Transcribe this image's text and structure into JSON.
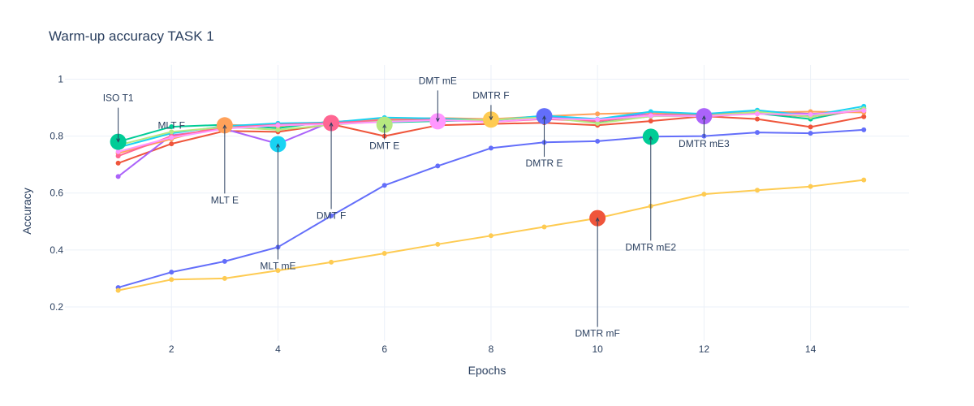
{
  "chart_data": {
    "type": "line",
    "title": "Warm-up accuracy TASK 1",
    "xlabel": "Epochs",
    "ylabel": "Accuracy",
    "xlim": [
      0.0,
      15.85
    ],
    "ylim": [
      0.08,
      1.05
    ],
    "x_ticks": [
      2,
      4,
      6,
      8,
      10,
      12,
      14
    ],
    "y_ticks": [
      0.2,
      0.4,
      0.6,
      0.8,
      1
    ],
    "grid": true,
    "legend": "none",
    "x": [
      1,
      2,
      3,
      4,
      5,
      6,
      7,
      8,
      9,
      10,
      11,
      12,
      13,
      14,
      15
    ],
    "series": [
      {
        "color": "#636efa",
        "values": [
          0.268,
          0.322,
          0.36,
          0.41,
          0.52,
          0.627,
          0.695,
          0.758,
          0.778,
          0.782,
          0.798,
          0.8,
          0.813,
          0.81,
          0.822
        ]
      },
      {
        "color": "#ef553b",
        "values": [
          0.705,
          0.773,
          0.818,
          0.815,
          0.842,
          0.8,
          0.838,
          0.843,
          0.847,
          0.838,
          0.853,
          0.87,
          0.86,
          0.832,
          0.868
        ]
      },
      {
        "color": "#00cc96",
        "values": [
          0.78,
          0.833,
          0.84,
          0.828,
          0.852,
          0.848,
          0.853,
          0.855,
          0.868,
          0.847,
          0.87,
          0.873,
          0.88,
          0.86,
          0.898
        ]
      },
      {
        "color": "#ab63fa",
        "values": [
          0.658,
          0.803,
          0.825,
          0.773,
          0.85,
          0.86,
          0.858,
          0.856,
          0.868,
          0.855,
          0.882,
          0.87,
          0.888,
          0.878,
          0.888
        ]
      },
      {
        "color": "#ffa15a",
        "values": [
          0.74,
          0.79,
          0.84,
          0.835,
          0.85,
          0.858,
          0.864,
          0.86,
          0.87,
          0.878,
          0.882,
          0.876,
          0.883,
          0.886,
          0.883
        ]
      },
      {
        "color": "#19d3f3",
        "values": [
          0.76,
          0.81,
          0.835,
          0.845,
          0.848,
          0.865,
          0.862,
          0.855,
          0.872,
          0.86,
          0.886,
          0.878,
          0.891,
          0.872,
          0.905
        ]
      },
      {
        "color": "#ff6692",
        "values": [
          0.73,
          0.8,
          0.83,
          0.84,
          0.846,
          0.856,
          0.858,
          0.85,
          0.86,
          0.852,
          0.875,
          0.868,
          0.881,
          0.868,
          0.892
        ]
      },
      {
        "color": "#b6e880",
        "values": [
          0.768,
          0.815,
          0.832,
          0.822,
          0.84,
          0.852,
          0.855,
          0.857,
          0.866,
          0.845,
          0.87,
          0.87,
          0.885,
          0.868,
          0.896
        ]
      },
      {
        "color": "#ff97ff",
        "values": [
          0.745,
          0.795,
          0.826,
          0.838,
          0.842,
          0.85,
          0.856,
          0.85,
          0.862,
          0.858,
          0.872,
          0.87,
          0.878,
          0.876,
          0.89
        ]
      },
      {
        "color": "#fecb52",
        "values": [
          0.258,
          0.296,
          0.3,
          0.328,
          0.357,
          0.388,
          0.42,
          0.45,
          0.481,
          0.512,
          0.554,
          0.596,
          0.61,
          0.623,
          0.646
        ]
      }
    ],
    "highlights": [
      {
        "x": 1,
        "y": 0.78,
        "color": "#00cc96"
      },
      {
        "x": 3,
        "y": 0.838,
        "color": "#ffa15a"
      },
      {
        "x": 4,
        "y": 0.772,
        "color": "#19d3f3"
      },
      {
        "x": 5,
        "y": 0.846,
        "color": "#ff6692"
      },
      {
        "x": 6,
        "y": 0.84,
        "color": "#b6e880"
      },
      {
        "x": 7,
        "y": 0.852,
        "color": "#ff97ff"
      },
      {
        "x": 8,
        "y": 0.858,
        "color": "#fecb52"
      },
      {
        "x": 9,
        "y": 0.87,
        "color": "#636efa"
      },
      {
        "x": 10,
        "y": 0.512,
        "color": "#ef553b"
      },
      {
        "x": 11,
        "y": 0.798,
        "color": "#00cc96"
      },
      {
        "x": 12,
        "y": 0.87,
        "color": "#ab63fa"
      }
    ],
    "annotations": [
      {
        "text": "ISO T1",
        "x": 1,
        "y": 0.78
      },
      {
        "text": "MLT F",
        "x": 2,
        "y": 0.803
      },
      {
        "text": "MLT E",
        "x": 3,
        "y": 0.838
      },
      {
        "text": "MLT mE",
        "x": 4,
        "y": 0.772
      },
      {
        "text": "DMT F",
        "x": 5,
        "y": 0.846
      },
      {
        "text": "DMT E",
        "x": 6,
        "y": 0.84
      },
      {
        "text": "DMT mE",
        "x": 7,
        "y": 0.852
      },
      {
        "text": "DMTR F",
        "x": 8,
        "y": 0.858
      },
      {
        "text": "DMTR E",
        "x": 9,
        "y": 0.87
      },
      {
        "text": "DMTR mF",
        "x": 10,
        "y": 0.512
      },
      {
        "text": "DMTR mE2",
        "x": 11,
        "y": 0.798
      },
      {
        "text": "DMTR mE3",
        "x": 12,
        "y": 0.87
      }
    ]
  }
}
